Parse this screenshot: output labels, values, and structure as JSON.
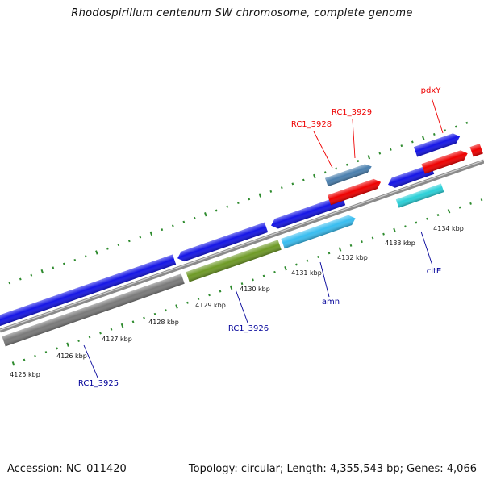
{
  "title": "Rhodospirillum centenum SW chromosome, complete genome",
  "footer": {
    "accession": "Accession: NC_011420",
    "info": "Topology: circular; Length: 4,355,543 bp; Genes: 4,066"
  },
  "colors": {
    "tick": "#2e8b2e",
    "red": "#ee0000",
    "darkblue": "#000099",
    "blue": "#1515e6",
    "steelblue": "#4a7fae",
    "cyan": "#2ad0d8",
    "skyblue": "#38bdf0",
    "olive": "#6e9a26",
    "gray": "#7a7a7a"
  },
  "axis": {
    "tick_labels": [
      "4125 kbp",
      "4126 kbp",
      "4127 kbp",
      "4128 kbp",
      "4129 kbp",
      "4130 kbp",
      "4131 kbp",
      "4132 kbp",
      "4133 kbp",
      "4134 kbp"
    ]
  },
  "genes": [
    {
      "label": "RC1_3925",
      "label_color": "darkblue"
    },
    {
      "label": "RC1_3926",
      "label_color": "darkblue"
    },
    {
      "label": "amn",
      "label_color": "darkblue"
    },
    {
      "label": "citE",
      "label_color": "darkblue"
    },
    {
      "label": "RC1_3928",
      "label_color": "red"
    },
    {
      "label": "RC1_3929",
      "label_color": "red"
    },
    {
      "label": "pdxY",
      "label_color": "red"
    }
  ]
}
